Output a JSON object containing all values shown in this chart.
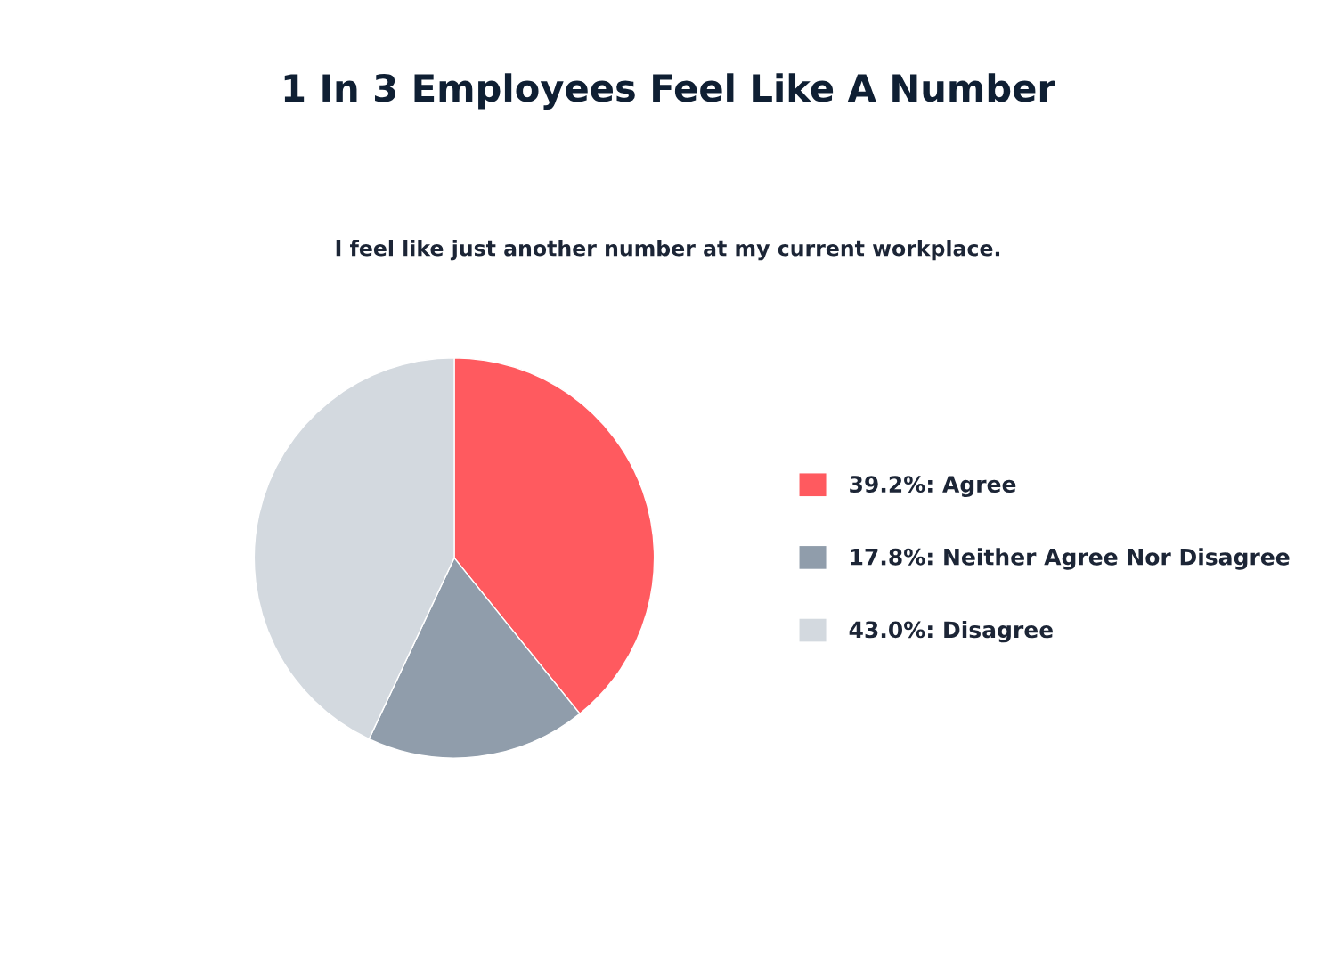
{
  "chart_data": {
    "type": "pie",
    "title": "1 In 3 Employees Feel Like A Number",
    "subtitle": "I feel like just another number at my current workplace.",
    "categories": [
      "39.2%: Agree",
      "17.8%: Neither Agree Nor Disagree",
      "43.0%: Disagree"
    ],
    "values": [
      39.2,
      17.8,
      43.0
    ],
    "colors": [
      "#ff5a5f",
      "#909dab",
      "#d3d9df"
    ],
    "legend": "right"
  }
}
